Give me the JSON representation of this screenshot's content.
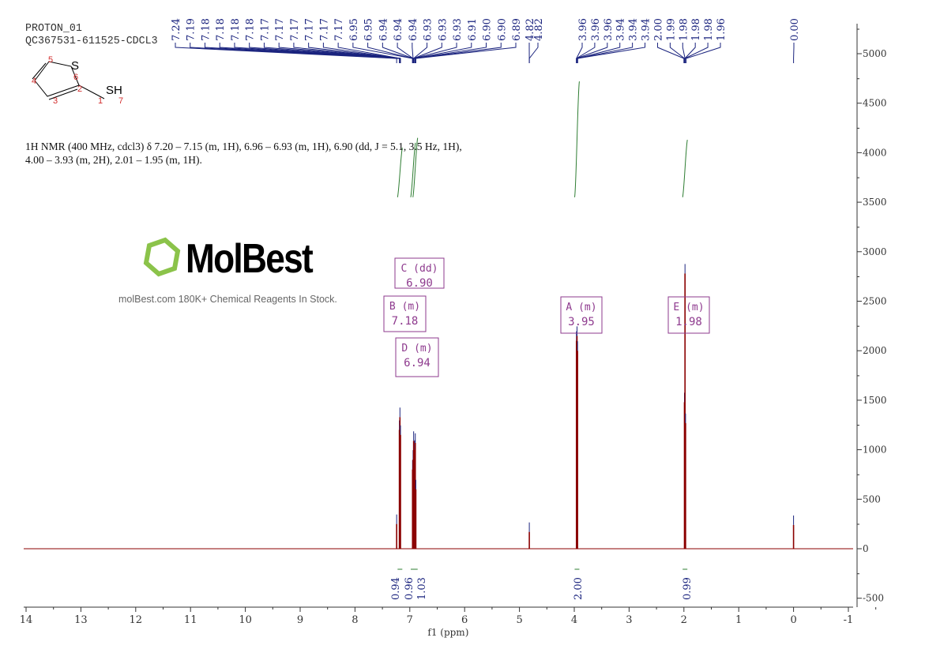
{
  "header": {
    "line1": "PROTON_01",
    "line2": "QC367531-611525-CDCL3"
  },
  "description": "1H NMR (400 MHz, cdcl3) δ 7.20 – 7.15 (m, 1H), 6.96 – 6.93 (m, 1H), 6.90 (dd, J = 5.1, 3.5 Hz, 1H), 4.00 – 3.93 (m, 2H), 2.01 – 1.95 (m, 1H).",
  "structure": {
    "atoms": [
      "S",
      "SH"
    ],
    "numbers": [
      "1",
      "2",
      "3",
      "4",
      "5",
      "6",
      "7"
    ]
  },
  "watermark": {
    "logo": "MolBest",
    "text": "molBest.com 180K+ Chemical Reagents In Stock."
  },
  "chart_data": {
    "type": "line",
    "xlabel": "f1 (ppm)",
    "xlim": [
      14,
      -1
    ],
    "ylim": [
      -500,
      5300
    ],
    "x_ticks": [
      "14",
      "13",
      "12",
      "11",
      "10",
      "9",
      "8",
      "7",
      "6",
      "5",
      "4",
      "3",
      "2",
      "1",
      "0",
      "-1"
    ],
    "y_ticks": [
      "-500",
      "0",
      "500",
      "1000",
      "1500",
      "2000",
      "2500",
      "3000",
      "3500",
      "4000",
      "4500",
      "5000"
    ],
    "spectrum_color": "#8b0000",
    "peaks": [
      {
        "ppm": 7.24,
        "height": 250
      },
      {
        "ppm": 7.19,
        "height": 1200
      },
      {
        "ppm": 7.18,
        "height": 1330
      },
      {
        "ppm": 7.17,
        "height": 1150
      },
      {
        "ppm": 6.95,
        "height": 800
      },
      {
        "ppm": 6.94,
        "height": 900
      },
      {
        "ppm": 6.93,
        "height": 1090
      },
      {
        "ppm": 6.91,
        "height": 1000
      },
      {
        "ppm": 6.9,
        "height": 1070
      },
      {
        "ppm": 6.89,
        "height": 600
      },
      {
        "ppm": 4.82,
        "height": 170
      },
      {
        "ppm": 3.96,
        "height": 2100
      },
      {
        "ppm": 3.95,
        "height": 2150
      },
      {
        "ppm": 3.94,
        "height": 2000
      },
      {
        "ppm": 1.99,
        "height": 1480
      },
      {
        "ppm": 1.98,
        "height": 2780
      },
      {
        "ppm": 1.97,
        "height": 1270
      },
      {
        "ppm": 0.0,
        "height": 240
      }
    ],
    "peak_label_groups": [
      [
        "7.24",
        "7.19",
        "7.18",
        "7.18",
        "7.18",
        "7.18",
        "7.17",
        "7.17",
        "7.17",
        "7.17",
        "7.17",
        "7.17",
        "6.95",
        "6.95",
        "6.94",
        "6.94",
        "6.94",
        "6.93",
        "6.93",
        "6.93",
        "6.91",
        "6.90",
        "6.90",
        "6.89"
      ],
      [
        "4.82",
        "4.82"
      ],
      [
        "3.96",
        "3.96",
        "3.96",
        "3.94",
        "3.94",
        "3.94",
        "2.00",
        "1.99",
        "1.98",
        "1.98",
        "1.98",
        "1.96"
      ],
      [
        "0.00"
      ]
    ],
    "integrals": [
      {
        "ppm": 7.18,
        "value": "0.94",
        "curve": [
          3550,
          4050
        ]
      },
      {
        "ppm": 6.94,
        "value": "0.96",
        "curve": [
          3550,
          4100
        ]
      },
      {
        "ppm": 6.9,
        "value": "1.03",
        "curve": [
          3550,
          4150
        ]
      },
      {
        "ppm": 3.95,
        "value": "2.00",
        "curve": [
          3550,
          4720
        ]
      },
      {
        "ppm": 1.98,
        "value": "0.99",
        "curve": [
          3550,
          4130
        ]
      }
    ],
    "multiplets": [
      {
        "label": "C (dd)",
        "value": "6.90"
      },
      {
        "label": "B (m)",
        "value": "7.18"
      },
      {
        "label": "D (m)",
        "value": "6.94"
      },
      {
        "label": "A (m)",
        "value": "3.95"
      },
      {
        "label": "E (m)",
        "value": "1.98"
      }
    ],
    "colors": {
      "labels": "#1a237e",
      "integral": "#2e7d32",
      "multiplet": "#8e3a8e",
      "atom_numbers": "#d32f2f"
    }
  }
}
